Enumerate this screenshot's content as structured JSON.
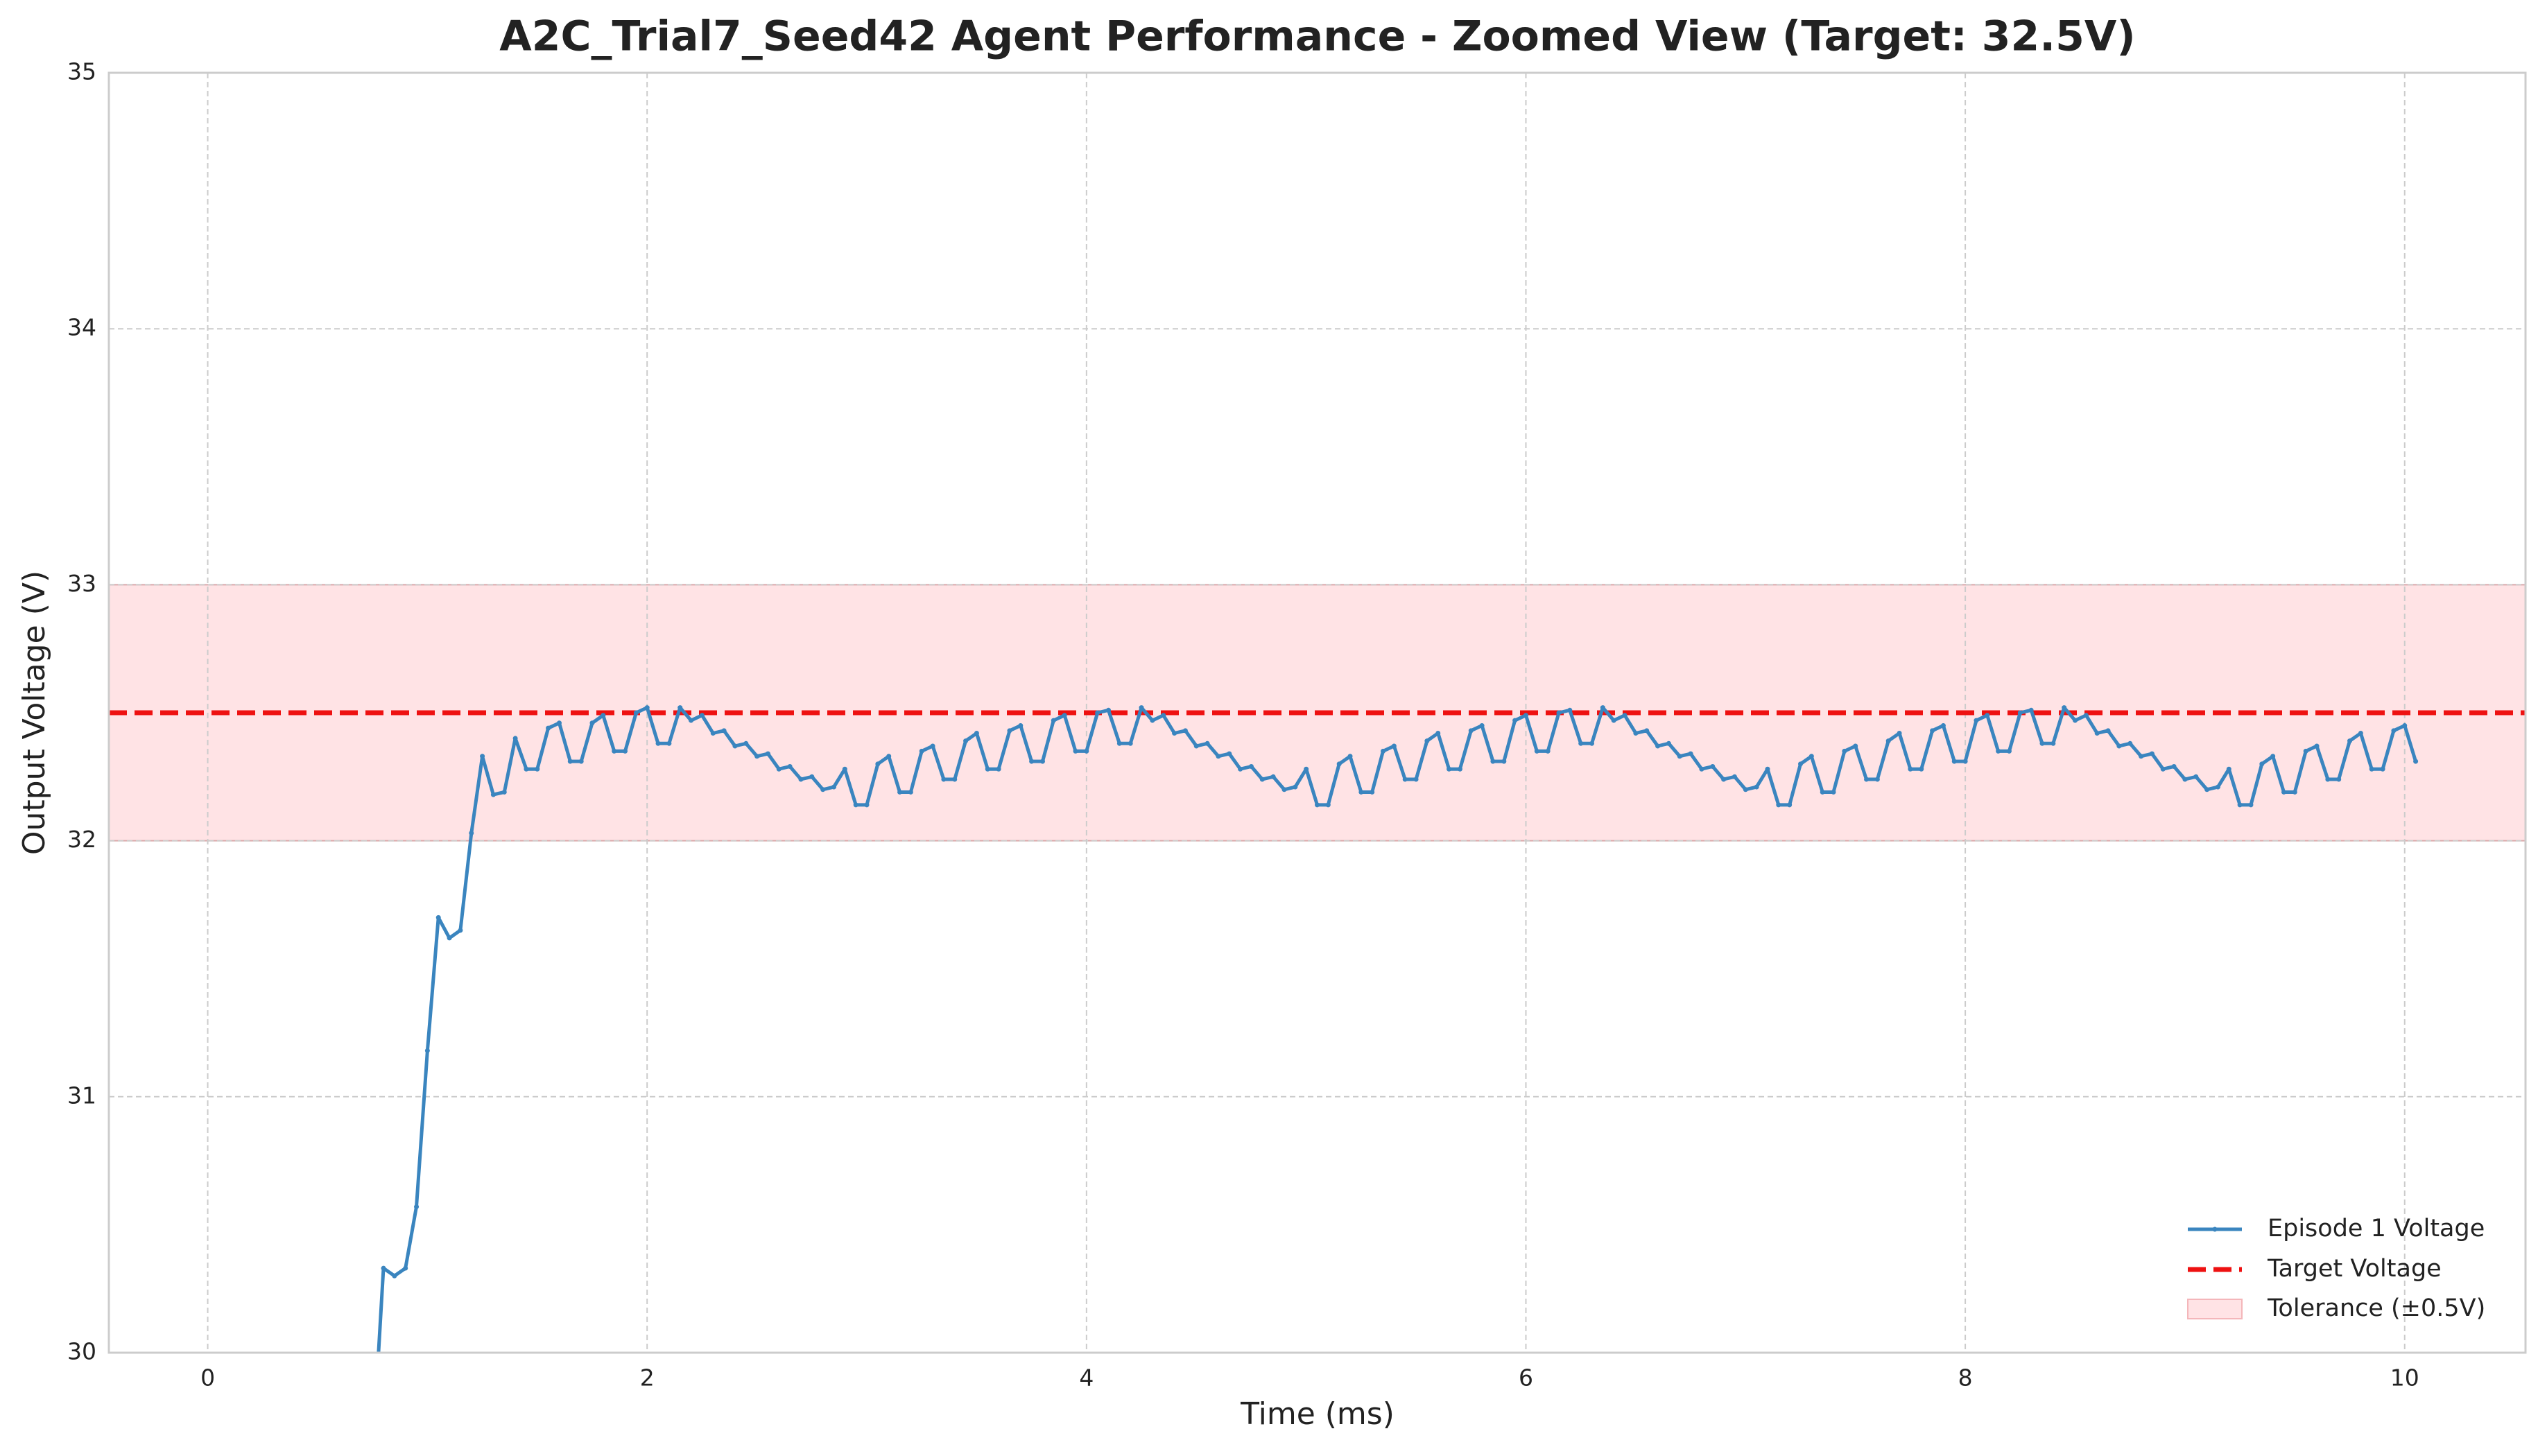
{
  "chart_data": {
    "type": "line",
    "title": "A2C_Trial7_Seed42 Agent Performance - Zoomed View (Target: 32.5V)",
    "xlabel": "Time (ms)",
    "ylabel": "Output Voltage (V)",
    "xlim": [
      -0.45,
      10.55
    ],
    "ylim": [
      30,
      35
    ],
    "xticks": [
      0,
      2,
      4,
      6,
      8,
      10
    ],
    "yticks": [
      30,
      31,
      32,
      33,
      34,
      35
    ],
    "grid": true,
    "legend": "lower right",
    "x": [
      0.75,
      0.8,
      0.85,
      0.9,
      0.95,
      1,
      1.05,
      1.1,
      1.15,
      1.2,
      1.25,
      1.3,
      1.35,
      1.4,
      1.45,
      1.5,
      1.55,
      1.6,
      1.65,
      1.7,
      1.75,
      1.8,
      1.85,
      1.9,
      1.95,
      2,
      2.05,
      2.1,
      2.15,
      2.2,
      2.25,
      2.3,
      2.35,
      2.4,
      2.45,
      2.5,
      2.55,
      2.6,
      2.65,
      2.7,
      2.75,
      2.8,
      2.85,
      2.9,
      2.95,
      3,
      3.05,
      3.1,
      3.15,
      3.2,
      3.25,
      3.3,
      3.35,
      3.4,
      3.45,
      3.5,
      3.55,
      3.6,
      3.65,
      3.7,
      3.75,
      3.8,
      3.85,
      3.9,
      3.95,
      4,
      4.05,
      4.1,
      4.15,
      4.2,
      4.25,
      4.3,
      4.35,
      4.4,
      4.45,
      4.5,
      4.55,
      4.6,
      4.65,
      4.7,
      4.75,
      4.8,
      4.85,
      4.9,
      4.95,
      5,
      5.05,
      5.1,
      5.15,
      5.2,
      5.25,
      5.3,
      5.35,
      5.4,
      5.45,
      5.5,
      5.55,
      5.6,
      5.65,
      5.7,
      5.75,
      5.8,
      5.85,
      5.9,
      5.95,
      6,
      6.05,
      6.1,
      6.15,
      6.2,
      6.25,
      6.3,
      6.35,
      6.4,
      6.45,
      6.5,
      6.55,
      6.6,
      6.65,
      6.7,
      6.75,
      6.8,
      6.85,
      6.9,
      6.95,
      7,
      7.05,
      7.1,
      7.15,
      7.2,
      7.25,
      7.3,
      7.35,
      7.4,
      7.45,
      7.5,
      7.55,
      7.6,
      7.65,
      7.7,
      7.75,
      7.8,
      7.85,
      7.9,
      7.95,
      8,
      8.05,
      8.1,
      8.15,
      8.2,
      8.25,
      8.3,
      8.35,
      8.4,
      8.45,
      8.5,
      8.55,
      8.6,
      8.65,
      8.7,
      8.75,
      8.8,
      8.85,
      8.9,
      8.95,
      9,
      9.05,
      9.1,
      9.15,
      9.2,
      9.25,
      9.3,
      9.35,
      9.4,
      9.45,
      9.5,
      9.55,
      9.6,
      9.65,
      9.7,
      9.75,
      9.8,
      9.85,
      9.9,
      9.95,
      10,
      10.05
    ],
    "series": [
      {
        "name": "Episode 1 Voltage",
        "color": "#3a85bf",
        "values": [
          29.6,
          30.33,
          30.3,
          30.33,
          30.57,
          31.18,
          31.7,
          31.62,
          31.65,
          32.03,
          32.33,
          32.18,
          32.19,
          32.4,
          32.28,
          32.28,
          32.44,
          32.46,
          32.31,
          32.31,
          32.46,
          32.49,
          32.35,
          32.35,
          32.5,
          32.52,
          32.38,
          32.38,
          32.52,
          32.47,
          32.49,
          32.42,
          32.43,
          32.37,
          32.38,
          32.33,
          32.34,
          32.28,
          32.29,
          32.24,
          32.25,
          32.2,
          32.21,
          32.28,
          32.14,
          32.14,
          32.3,
          32.33,
          32.19,
          32.19,
          32.35,
          32.37,
          32.24,
          32.24,
          32.39,
          32.42,
          32.28,
          32.28,
          32.43,
          32.45,
          32.31,
          32.31,
          32.47,
          32.49,
          32.35,
          32.35,
          32.5,
          32.51,
          32.38,
          32.38,
          32.52,
          32.47,
          32.49,
          32.42,
          32.43,
          32.37,
          32.38,
          32.33,
          32.34,
          32.28,
          32.29,
          32.24,
          32.25,
          32.2,
          32.21,
          32.28,
          32.14,
          32.14,
          32.3,
          32.33,
          32.19,
          32.19,
          32.35,
          32.37,
          32.24,
          32.24,
          32.39,
          32.42,
          32.28,
          32.28,
          32.43,
          32.45,
          32.31,
          32.31,
          32.47,
          32.49,
          32.35,
          32.35,
          32.5,
          32.51,
          32.38,
          32.38,
          32.52,
          32.47,
          32.49,
          32.42,
          32.43,
          32.37,
          32.38,
          32.33,
          32.34,
          32.28,
          32.29,
          32.24,
          32.25,
          32.2,
          32.21,
          32.28,
          32.14,
          32.14,
          32.3,
          32.33,
          32.19,
          32.19,
          32.35,
          32.37,
          32.24,
          32.24,
          32.39,
          32.42,
          32.28,
          32.28,
          32.43,
          32.45,
          32.31,
          32.31,
          32.47,
          32.49,
          32.35,
          32.35,
          32.5,
          32.51,
          32.38,
          32.38,
          32.52,
          32.47,
          32.49,
          32.42,
          32.43,
          32.37,
          32.38,
          32.33,
          32.34,
          32.28,
          32.29,
          32.24,
          32.25,
          32.2,
          32.21,
          32.28,
          32.14,
          32.14,
          32.3,
          32.33,
          32.19,
          32.19,
          32.35,
          32.37,
          32.24,
          32.24,
          32.39,
          32.42,
          32.28,
          32.28,
          32.43,
          32.45,
          32.31
        ]
      }
    ],
    "target": {
      "name": "Target Voltage",
      "value": 32.5,
      "color": "#ee1111"
    },
    "tolerance": {
      "name": "Tolerance (±0.5V)",
      "range": [
        32,
        33
      ],
      "color": "#ffe3e5"
    }
  }
}
